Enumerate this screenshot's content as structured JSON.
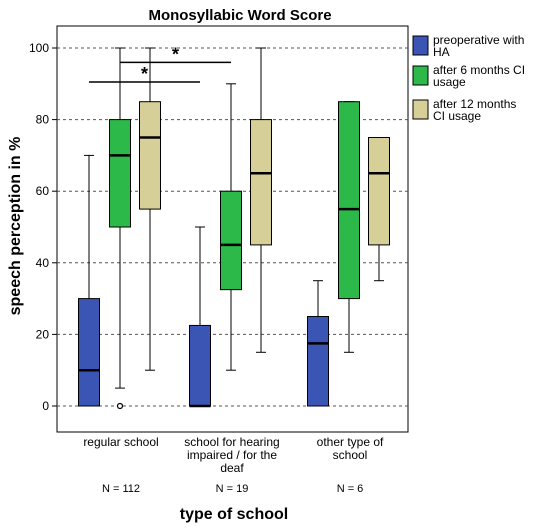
{
  "chart_data": {
    "type": "boxplot",
    "title": "Monosyllabic Word Score",
    "xlabel": "type of school",
    "ylabel": "speech perception in %",
    "ylim": [
      0,
      100
    ],
    "yticks": [
      "0",
      "20",
      "40",
      "60",
      "80",
      "100"
    ],
    "grid": "horizontal dashed",
    "legend_position": "right",
    "categories": [
      {
        "lines": [
          "regular school"
        ],
        "n_label": "N = 112"
      },
      {
        "lines": [
          "school for hearing",
          "impaired / for the",
          "deaf"
        ],
        "n_label": "N = 19"
      },
      {
        "lines": [
          "other type of",
          "school"
        ],
        "n_label": "N = 6"
      }
    ],
    "series": [
      {
        "name": "preoperative with HA",
        "legend_lines": [
          "preoperative with",
          "HA"
        ],
        "color": "#3a55b4",
        "boxes": [
          {
            "whisker_low": 0,
            "q1": 0,
            "median": 10,
            "q3": 30,
            "whisker_high": 70
          },
          {
            "whisker_low": 0,
            "q1": 0,
            "median": 0,
            "q3": 22.5,
            "whisker_high": 50
          },
          {
            "whisker_low": 0,
            "q1": 0,
            "median": 17.5,
            "q3": 25,
            "whisker_high": 35
          }
        ]
      },
      {
        "name": "after 6 months CI usage",
        "legend_lines": [
          "after 6 months CI",
          "usage"
        ],
        "color": "#2db84a",
        "boxes": [
          {
            "whisker_low": 5,
            "q1": 50,
            "median": 70,
            "q3": 80,
            "whisker_high": 100,
            "outliers": [
              0
            ]
          },
          {
            "whisker_low": 10,
            "q1": 32.5,
            "median": 45,
            "q3": 60,
            "whisker_high": 90
          },
          {
            "whisker_low": 15,
            "q1": 30,
            "median": 55,
            "q3": 85,
            "whisker_high": 85
          }
        ]
      },
      {
        "name": "after 12 months CI usage",
        "legend_lines": [
          "after 12 months",
          "CI usage"
        ],
        "color": "#d6cf98",
        "boxes": [
          {
            "whisker_low": 10,
            "q1": 55,
            "median": 75,
            "q3": 85,
            "whisker_high": 100
          },
          {
            "whisker_low": 15,
            "q1": 45,
            "median": 65,
            "q3": 80,
            "whisker_high": 100
          },
          {
            "whisker_low": 35,
            "q1": 45,
            "median": 65,
            "q3": 75,
            "whisker_high": 75
          }
        ]
      }
    ],
    "annotations": [
      {
        "text": "*",
        "from": {
          "category": 0,
          "series": 1
        },
        "to": {
          "category": 1,
          "series": 1
        },
        "y": 96
      },
      {
        "text": "*",
        "from": {
          "category": 0,
          "series": 0
        },
        "to": {
          "category": 1,
          "series": 0
        },
        "y": 90.5
      }
    ]
  }
}
